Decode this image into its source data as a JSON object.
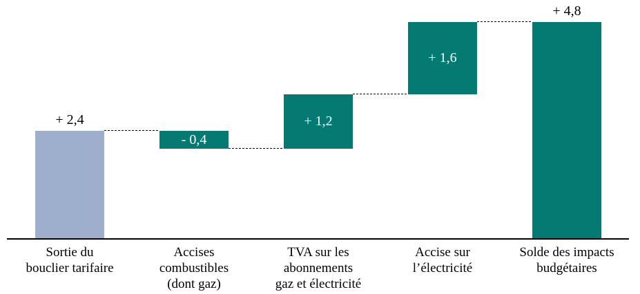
{
  "chart_data": {
    "type": "bar",
    "subtype": "waterfall",
    "title": "",
    "xlabel": "",
    "ylabel": "",
    "ylim": [
      0,
      5
    ],
    "grid": false,
    "legend": false,
    "connector_style": "dashed",
    "categories": [
      "Sortie du\nbouclier tarifaire",
      "Accises\ncombustibles\n(dont gaz)",
      "TVA sur les\nabonnements\ngaz et électricité",
      "Accise sur\nl’électricité",
      "Solde des impacts\nbudgétaires"
    ],
    "values": [
      2.4,
      -0.4,
      1.2,
      1.6,
      4.8
    ],
    "bar_roles": [
      "start",
      "delta",
      "delta",
      "delta",
      "total"
    ],
    "cumulative_start": [
      0,
      2.4,
      2.0,
      3.2,
      0
    ],
    "cumulative_end": [
      2.4,
      2.0,
      3.2,
      4.8,
      4.8
    ],
    "value_labels": [
      "+ 2,4",
      "- 0,4",
      "+ 1,2",
      "+ 1,6",
      "+ 4,8"
    ],
    "label_placement": [
      "above",
      "inside",
      "inside",
      "inside",
      "above"
    ],
    "bar_colors": [
      "#9dafcd",
      "#047a73",
      "#047a73",
      "#047a73",
      "#047a73"
    ],
    "colors": {
      "start_bar": "#9dafcd",
      "delta_bar": "#047a73",
      "value_inside": "#ffffff",
      "value_outside": "#000000",
      "axis": "#000000",
      "connector": "#000000",
      "background": "#ffffff"
    }
  }
}
